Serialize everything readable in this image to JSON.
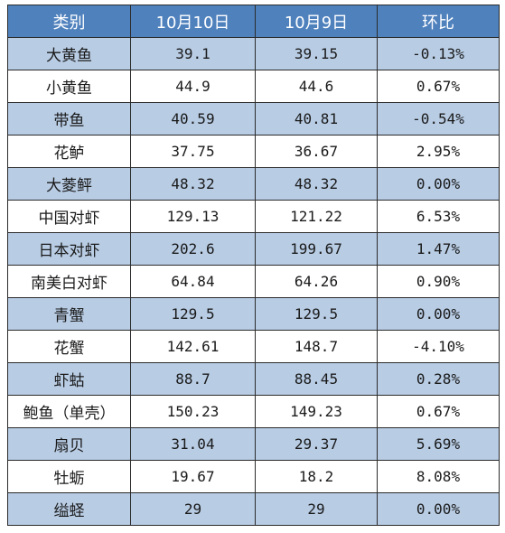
{
  "table": {
    "headers": [
      "类别",
      "10月10日",
      "10月9日",
      "环比"
    ],
    "rows": [
      [
        "大黄鱼",
        "39.1",
        "39.15",
        "-0.13%"
      ],
      [
        "小黄鱼",
        "44.9",
        "44.6",
        "0.67%"
      ],
      [
        "带鱼",
        "40.59",
        "40.81",
        "-0.54%"
      ],
      [
        "花鲈",
        "37.75",
        "36.67",
        "2.95%"
      ],
      [
        "大菱鲆",
        "48.32",
        "48.32",
        "0.00%"
      ],
      [
        "中国对虾",
        "129.13",
        "121.22",
        "6.53%"
      ],
      [
        "日本对虾",
        "202.6",
        "199.67",
        "1.47%"
      ],
      [
        "南美白对虾",
        "64.84",
        "64.26",
        "0.90%"
      ],
      [
        "青蟹",
        "129.5",
        "129.5",
        "0.00%"
      ],
      [
        "花蟹",
        "142.61",
        "148.7",
        "-4.10%"
      ],
      [
        "虾蛄",
        "88.7",
        "88.45",
        "0.28%"
      ],
      [
        "鲍鱼（单壳）",
        "150.23",
        "149.23",
        "0.67%"
      ],
      [
        "扇贝",
        "31.04",
        "29.37",
        "5.69%"
      ],
      [
        "牡蛎",
        "19.67",
        "18.2",
        "8.08%"
      ],
      [
        "缢蛏",
        "29",
        "29",
        "0.00%"
      ]
    ]
  },
  "colors": {
    "header_bg": "#4f81bd",
    "band_bg": "#b8cce4",
    "plain_bg": "#ffffff",
    "border": "#2b2b2b"
  }
}
